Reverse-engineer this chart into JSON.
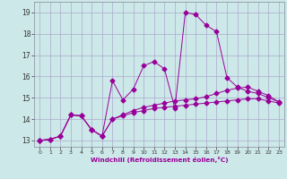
{
  "xlabel": "Windchill (Refroidissement éolien,°C)",
  "x_ticks": [
    0,
    1,
    2,
    3,
    4,
    5,
    6,
    7,
    8,
    9,
    10,
    11,
    12,
    13,
    14,
    15,
    16,
    17,
    18,
    19,
    20,
    21,
    22,
    23
  ],
  "ylim": [
    12.7,
    19.5
  ],
  "xlim": [
    -0.5,
    23.5
  ],
  "yticks": [
    13,
    14,
    15,
    16,
    17,
    18,
    19
  ],
  "bg_color": "#cde8e8",
  "grid_color": "#aaaacc",
  "line_color": "#990099",
  "line1_y": [
    13.0,
    13.05,
    13.2,
    14.2,
    14.15,
    13.5,
    13.2,
    15.8,
    14.9,
    15.4,
    16.5,
    16.7,
    16.35,
    14.5,
    19.0,
    18.9,
    18.4,
    18.1,
    15.95,
    15.5,
    15.3,
    15.2,
    15.0,
    14.8
  ],
  "line2_y": [
    13.0,
    13.05,
    13.2,
    14.2,
    14.15,
    13.5,
    13.2,
    14.0,
    14.15,
    14.3,
    14.4,
    14.5,
    14.55,
    14.6,
    14.65,
    14.7,
    14.75,
    14.8,
    14.85,
    14.9,
    14.95,
    14.95,
    14.85,
    14.75
  ],
  "line3_y": [
    13.0,
    13.05,
    13.2,
    14.2,
    14.15,
    13.5,
    13.2,
    14.0,
    14.2,
    14.4,
    14.55,
    14.65,
    14.75,
    14.85,
    14.9,
    14.95,
    15.05,
    15.2,
    15.35,
    15.45,
    15.5,
    15.3,
    15.1,
    14.8
  ]
}
